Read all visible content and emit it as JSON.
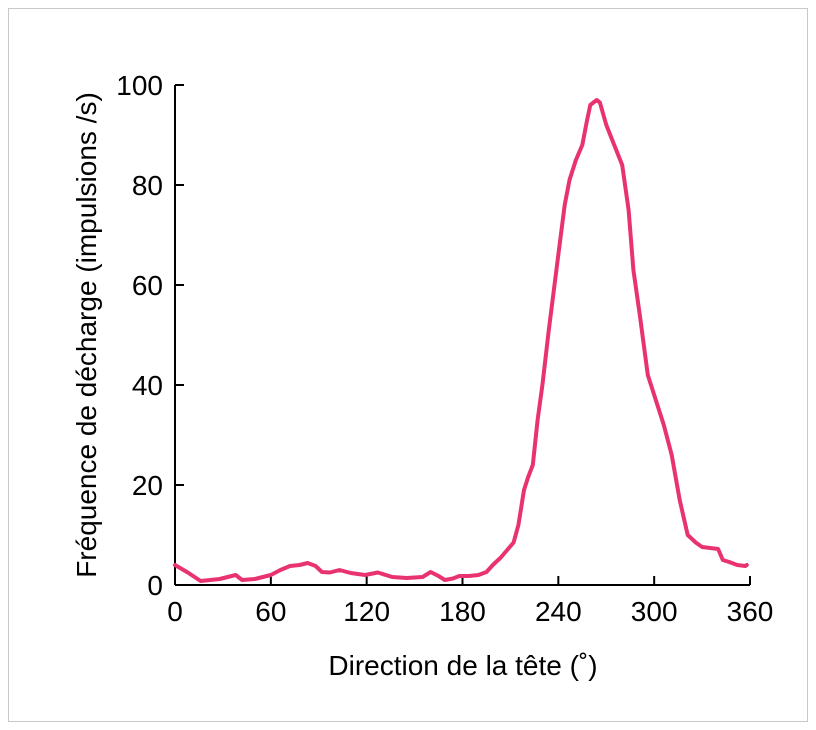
{
  "chart_data": {
    "type": "line",
    "xlabel": "Direction de la tête (˚)",
    "ylabel": "Fréquence de décharge (impulsions /s)",
    "xlim": [
      0,
      360
    ],
    "xticks": [
      0,
      60,
      120,
      180,
      240,
      300,
      360
    ],
    "ylim": [
      0,
      100
    ],
    "yticks": [
      0,
      20,
      40,
      60,
      80,
      100
    ],
    "grid": false,
    "series": [
      {
        "color": "#e8336f",
        "x": [
          0,
          8,
          16,
          28,
          38,
          42,
          50,
          60,
          66,
          72,
          78,
          83,
          88,
          92,
          97,
          103,
          110,
          119,
          127,
          136,
          145,
          150,
          155,
          160,
          165,
          169,
          174,
          178,
          184,
          190,
          195,
          199,
          204,
          208,
          212,
          215,
          218.5,
          221,
          224,
          227,
          230,
          234,
          240,
          244,
          247,
          251,
          255,
          258,
          260,
          264,
          266,
          270,
          275,
          280,
          284,
          287,
          291,
          296,
          301,
          306,
          311,
          316,
          321,
          326,
          330,
          335,
          340,
          343,
          347,
          352,
          357,
          358
        ],
        "values": [
          4,
          2.5,
          0.8,
          1.2,
          2,
          1,
          1.2,
          2,
          3,
          3.8,
          4,
          4.4,
          3.8,
          2.6,
          2.5,
          3,
          2.4,
          2,
          2.5,
          1.6,
          1.4,
          1.5,
          1.6,
          2.6,
          1.8,
          1,
          1.3,
          1.8,
          1.8,
          2,
          2.6,
          4,
          5.5,
          7,
          8.5,
          12,
          19,
          21.5,
          24,
          33,
          40,
          51,
          66,
          76,
          81,
          85,
          88,
          93,
          96,
          97,
          96.5,
          92,
          88,
          84,
          75,
          63,
          54,
          42,
          37,
          32,
          26,
          17,
          10,
          8.5,
          7.6,
          7.4,
          7.2,
          5,
          4.6,
          4,
          3.8,
          4
        ]
      }
    ]
  }
}
